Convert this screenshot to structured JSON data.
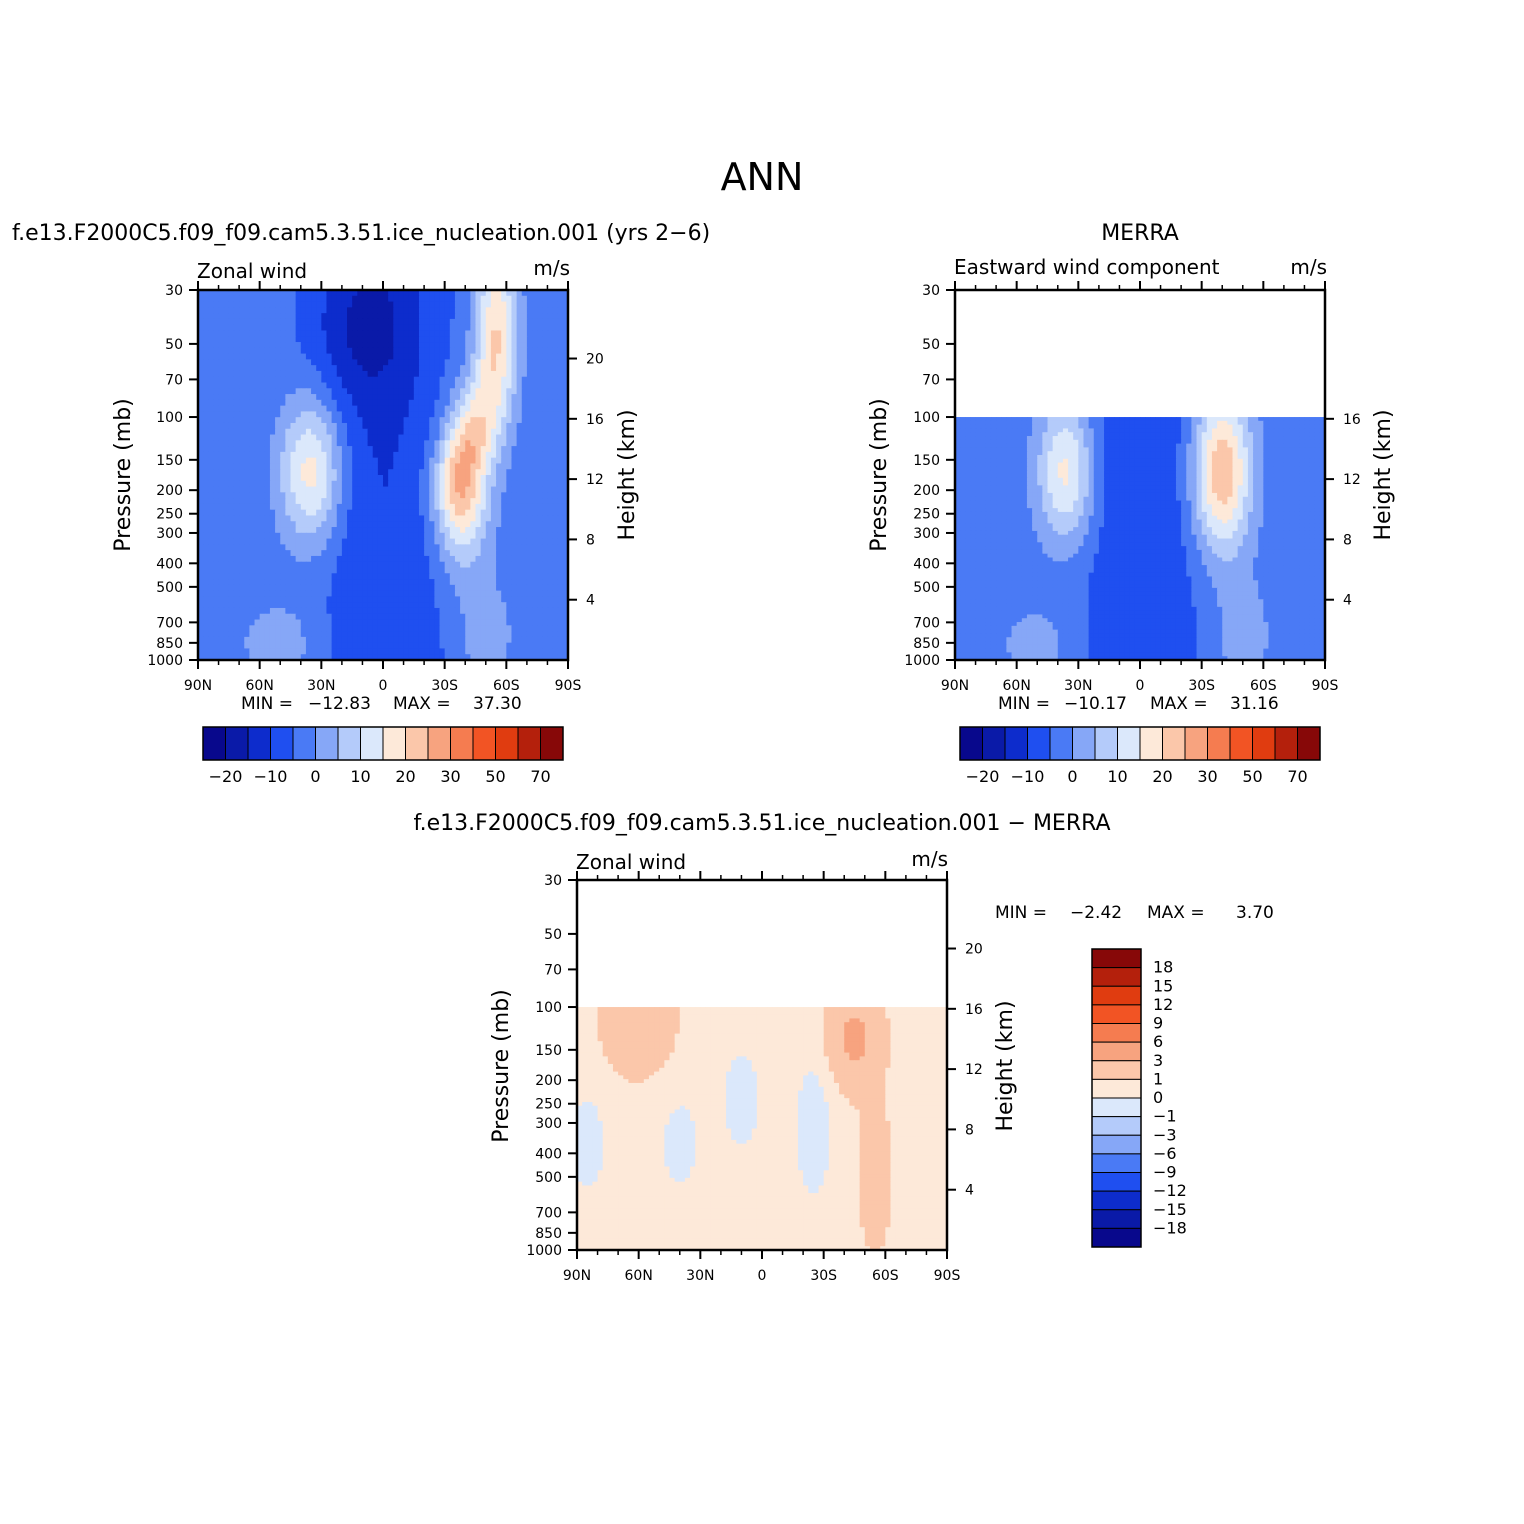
{
  "figure": {
    "title": "ANN"
  },
  "chart_data": [
    {
      "type": "heatmap",
      "panel_title": "f.e13.F2000C5.f09_f09.cam5.3.51.ice_nucleation.001 (yrs 2−6)",
      "left_label": "Zonal wind",
      "units": "m/s",
      "x_ticks": [
        "90N",
        "60N",
        "30N",
        "0",
        "30S",
        "60S",
        "90S"
      ],
      "y_ticks": [
        "30",
        "50",
        "70",
        "100",
        "150",
        "200",
        "250",
        "300",
        "400",
        "500",
        "700",
        "850",
        "1000"
      ],
      "y_right_ticks": [
        "20",
        "16",
        "12",
        "8",
        "4"
      ],
      "ylabel": "Pressure (mb)",
      "ylabel_right": "Height (km)",
      "xlim": [
        90,
        -90
      ],
      "ylim_mb": [
        1000,
        30
      ],
      "y_scale": "log",
      "min_label": "MIN =",
      "min": "−12.83",
      "max_label": "MAX =",
      "max": "37.30",
      "colorbar_ticks": [
        "−20",
        "−10",
        "0",
        "10",
        "20",
        "30",
        "50",
        "70"
      ],
      "colorbar_orientation": "horizontal",
      "data_top_mb": 30
    },
    {
      "type": "heatmap",
      "panel_title": "MERRA",
      "left_label": "Eastward wind component",
      "units": "m/s",
      "x_ticks": [
        "90N",
        "60N",
        "30N",
        "0",
        "30S",
        "60S",
        "90S"
      ],
      "y_ticks": [
        "30",
        "50",
        "70",
        "100",
        "150",
        "200",
        "250",
        "300",
        "400",
        "500",
        "700",
        "850",
        "1000"
      ],
      "y_right_ticks": [
        "16",
        "12",
        "8",
        "4"
      ],
      "ylabel": "Pressure (mb)",
      "ylabel_right": "Height (km)",
      "xlim": [
        90,
        -90
      ],
      "ylim_mb": [
        1000,
        30
      ],
      "y_scale": "log",
      "min_label": "MIN =",
      "min": "−10.17",
      "max_label": "MAX =",
      "max": "31.16",
      "colorbar_ticks": [
        "−20",
        "−10",
        "0",
        "10",
        "20",
        "30",
        "50",
        "70"
      ],
      "colorbar_orientation": "horizontal",
      "data_top_mb": 100
    },
    {
      "type": "heatmap",
      "panel_title": "f.e13.F2000C5.f09_f09.cam5.3.51.ice_nucleation.001 − MERRA",
      "left_label": "Zonal wind",
      "units": "m/s",
      "x_ticks": [
        "90N",
        "60N",
        "30N",
        "0",
        "30S",
        "60S",
        "90S"
      ],
      "y_ticks": [
        "30",
        "50",
        "70",
        "100",
        "150",
        "200",
        "250",
        "300",
        "400",
        "500",
        "700",
        "850",
        "1000"
      ],
      "y_right_ticks": [
        "20",
        "16",
        "12",
        "8",
        "4"
      ],
      "ylabel": "Pressure (mb)",
      "ylabel_right": "Height (km)",
      "xlim": [
        90,
        -90
      ],
      "ylim_mb": [
        1000,
        30
      ],
      "y_scale": "log",
      "min_label": "MIN =",
      "min": "−2.42",
      "max_label": "MAX =",
      "max": "3.70",
      "colorbar_ticks": [
        "18",
        "15",
        "12",
        "9",
        "6",
        "3",
        "1",
        "0",
        "−1",
        "−3",
        "−6",
        "−9",
        "−12",
        "−15",
        "−18"
      ],
      "colorbar_orientation": "vertical",
      "data_top_mb": 100
    }
  ],
  "palettes": {
    "absolute": [
      "#08088c",
      "#0a1aa8",
      "#0d2ccc",
      "#1f4ff0",
      "#4a7af5",
      "#86a7f7",
      "#b4cbfa",
      "#dbe8fb",
      "#fde9d9",
      "#fbc7aa",
      "#f7a37f",
      "#f57c50",
      "#f25424",
      "#e03c10",
      "#b4200c",
      "#870808"
    ],
    "difference": [
      "#08088c",
      "#0a1aa8",
      "#0d2ccc",
      "#1f4ff0",
      "#4a7af5",
      "#86a7f7",
      "#b4cbfa",
      "#dbe8fb",
      "#fde9d9",
      "#fbc7aa",
      "#f7a37f",
      "#f57c50",
      "#f25424",
      "#e03c10",
      "#b4200c",
      "#870808"
    ]
  }
}
